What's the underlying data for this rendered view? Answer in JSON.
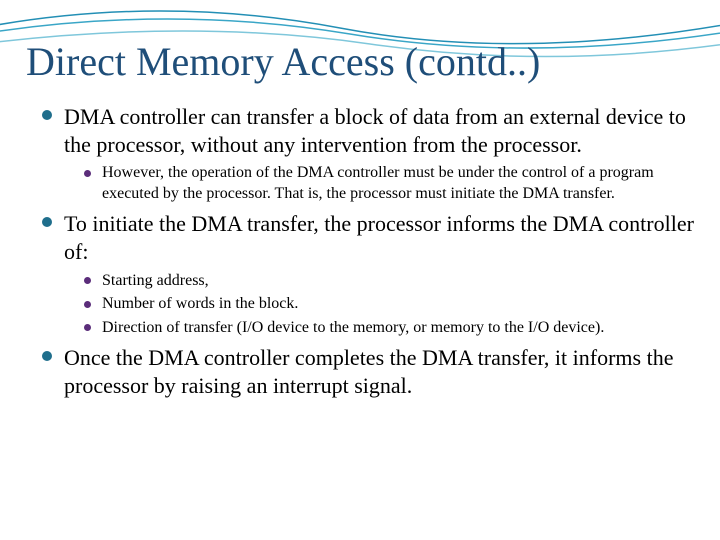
{
  "title": {
    "text": "Direct Memory Access (contd..)",
    "fontsize": 40,
    "color": "#1f4e79"
  },
  "bullets": {
    "top_fontsize": 22,
    "sub_fontsize": 16,
    "text_color": "#000000",
    "bullet_color_top": "#1f6e8c",
    "bullet_color_sub": "#5b2d7a",
    "items": [
      {
        "text": "DMA controller can transfer a block of data from an external device to the processor, without any intervention from the processor.",
        "sub": [
          {
            "text": "However, the operation of the DMA controller must be under the control of a program executed by the processor. That is, the processor must initiate the DMA transfer."
          }
        ]
      },
      {
        "text": "To initiate the DMA transfer, the processor informs the DMA controller of:",
        "sub": [
          {
            "text": "Starting address,"
          },
          {
            "text": "Number of words in the block."
          },
          {
            "text": "Direction of transfer (I/O device to the memory, or memory to the I/O device)."
          }
        ]
      },
      {
        "text": "Once the DMA controller completes the DMA transfer, it informs the processor by raising an interrupt signal.",
        "sub": []
      }
    ]
  },
  "waves": {
    "stroke1": "#238fb5",
    "stroke2": "#3aa6c7",
    "stroke3": "#7fc7db",
    "stroke_width": 1.5
  },
  "background_color": "#ffffff"
}
